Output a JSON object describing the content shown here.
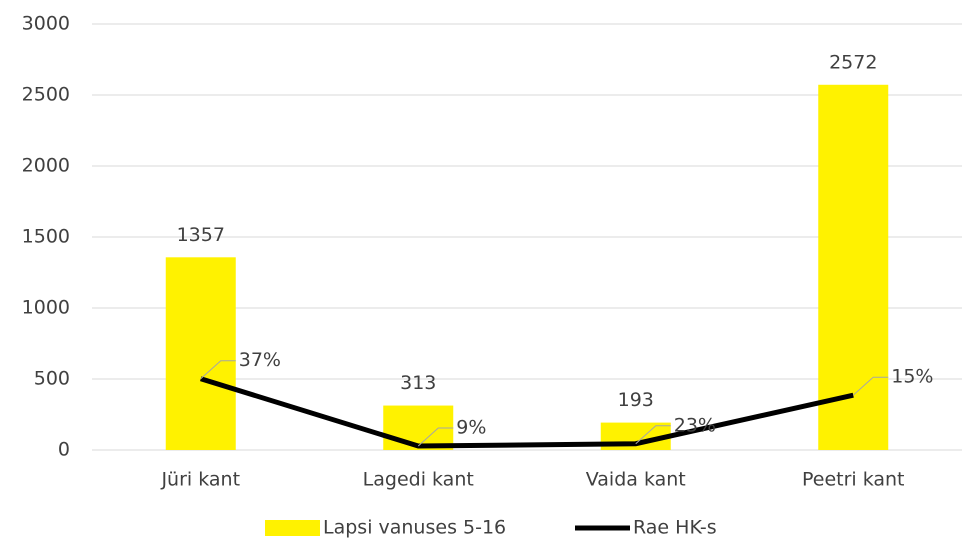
{
  "chart_data": {
    "type": "bar",
    "categories": [
      "Jüri kant",
      "Lagedi kant",
      "Vaida kant",
      "Peetri kant"
    ],
    "series": [
      {
        "name": "Lapsi vanuses 5-16",
        "type": "bar",
        "color": "#fff200",
        "values": [
          1357,
          313,
          193,
          2572
        ]
      },
      {
        "name": "Rae HK-s",
        "type": "line",
        "color": "#000000",
        "values": [
          502,
          28,
          44,
          386
        ],
        "point_labels": [
          "37%",
          "9%",
          "23%",
          "15%"
        ]
      }
    ],
    "ylim": [
      0,
      3000
    ],
    "yticks": [
      0,
      500,
      1000,
      1500,
      2000,
      2500,
      3000
    ],
    "grid": true,
    "legend": "bottom"
  }
}
